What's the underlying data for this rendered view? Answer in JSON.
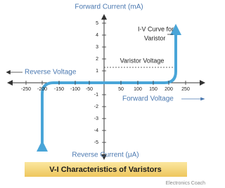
{
  "header": {
    "title": "Forward Current (mA)"
  },
  "axes": {
    "y_ticks_up": [
      1,
      2,
      3,
      4,
      5
    ],
    "y_ticks_down": [
      -1,
      -2,
      -3,
      -4,
      -5
    ],
    "x_ticks": [
      -250,
      -200,
      -150,
      -100,
      -50,
      50,
      100,
      150,
      200,
      250
    ],
    "bottom_label": "Reverse Current (μA)",
    "left_label": "Reverse Voltage",
    "right_label": "Forward Voltage"
  },
  "annotations": {
    "curve_label": [
      "I-V Curve for",
      "Varistor"
    ],
    "knee_label": "Varistor Voltage"
  },
  "caption": "V-I Characteristics of Varistors",
  "watermark": "Electronics Coach"
}
